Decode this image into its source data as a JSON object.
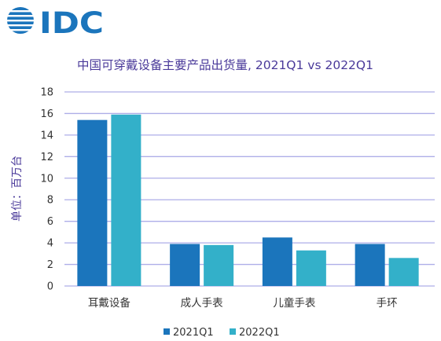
{
  "logo": {
    "text": "IDC",
    "brand_color": "#1b75bc",
    "icon": "globe-icon"
  },
  "chart_data": {
    "type": "bar",
    "title": "中国可穿戴设备主要产品出货量, 2021Q1 vs 2022Q1",
    "ylabel": "单位：百万台",
    "xlabel": "",
    "categories": [
      "耳戴设备",
      "成人手表",
      "儿童手表",
      "手环"
    ],
    "series": [
      {
        "name": "2021Q1",
        "color": "#1b75bc",
        "values": [
          15.4,
          3.9,
          4.5,
          3.9
        ]
      },
      {
        "name": "2022Q1",
        "color": "#33b0c9",
        "values": [
          15.9,
          3.8,
          3.3,
          2.6
        ]
      }
    ],
    "ylim": [
      0,
      18
    ],
    "yticks": [
      0,
      2,
      4,
      6,
      8,
      10,
      12,
      14,
      16,
      18
    ],
    "grid": true,
    "grid_color": "#aeaee8",
    "legend_position": "bottom"
  }
}
